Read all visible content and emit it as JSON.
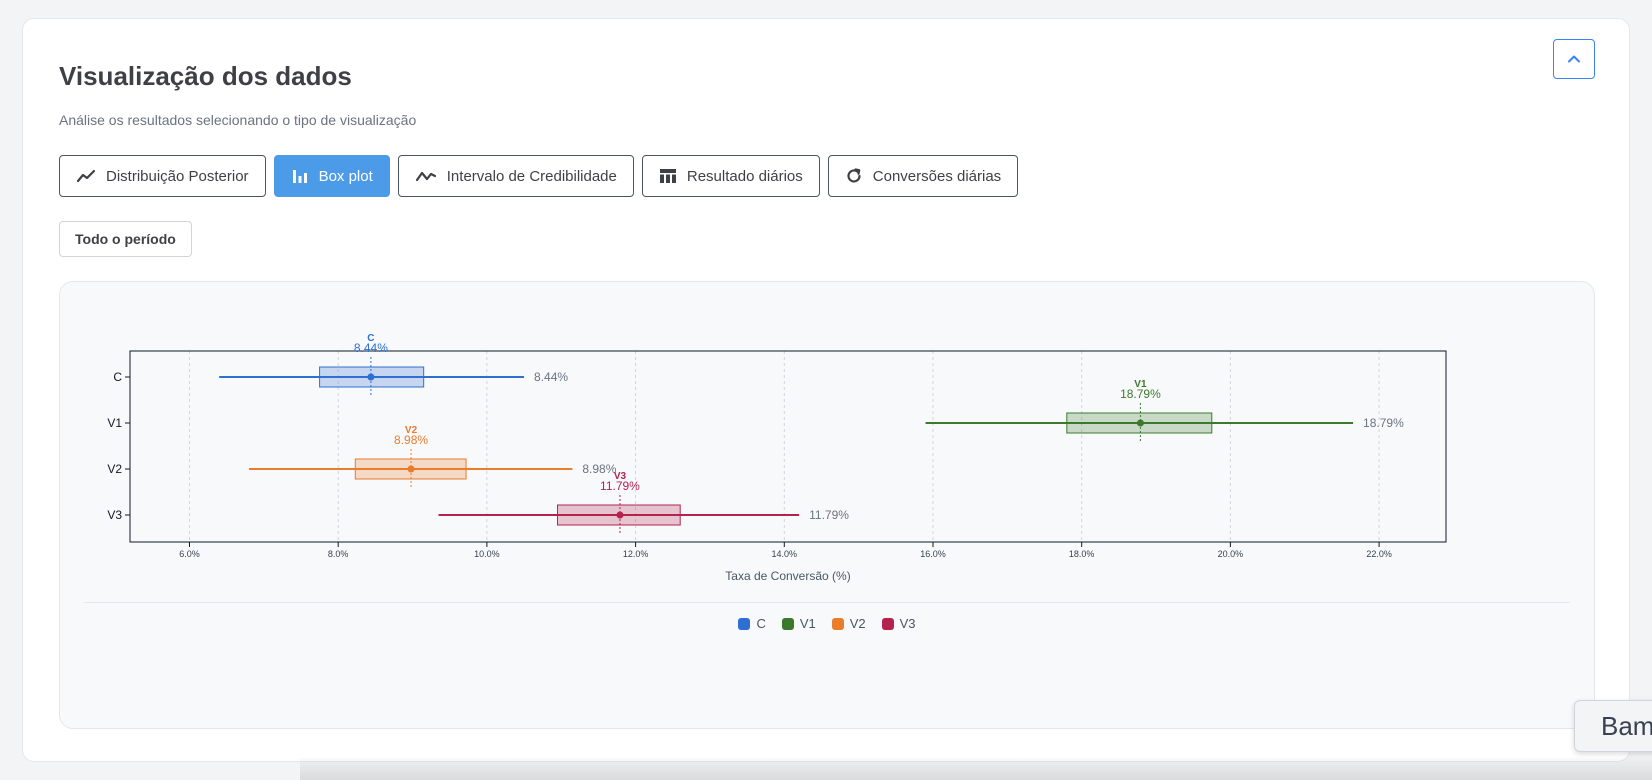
{
  "section": {
    "title": "Visualização dos dados",
    "subtitle": "Análise os resultados selecionando o tipo de visualização"
  },
  "tabs": [
    {
      "label": "Distribuição Posterior",
      "icon": "line-chart-icon",
      "active": false
    },
    {
      "label": "Box plot",
      "icon": "bar-chart-icon",
      "active": true
    },
    {
      "label": "Intervalo de Credibilidade",
      "icon": "line-chart-icon",
      "active": false
    },
    {
      "label": "Resultado diários",
      "icon": "table-icon",
      "active": false
    },
    {
      "label": "Conversões diárias",
      "icon": "refresh-icon",
      "active": false
    }
  ],
  "period_button": "Todo o período",
  "toast": "Bam",
  "colors": {
    "accent": "#4c9be8",
    "C": "#2e6fd1",
    "V1": "#3b7a2c",
    "V2": "#ea7c2c",
    "V3": "#b5224f"
  },
  "chart_data": {
    "type": "boxplot",
    "orientation": "horizontal",
    "xlabel": "Taxa de Conversão (%)",
    "xlim": [
      5.2,
      22.9
    ],
    "x_ticks": [
      "6.0%",
      "8.0%",
      "10.0%",
      "12.0%",
      "14.0%",
      "16.0%",
      "18.0%",
      "20.0%",
      "22.0%"
    ],
    "x_tick_values": [
      6,
      8,
      10,
      12,
      14,
      16,
      18,
      20,
      22
    ],
    "grid": "vertical dashed",
    "legend": "bottom-center",
    "categories": [
      "C",
      "V1",
      "V2",
      "V3"
    ],
    "series": [
      {
        "name": "C",
        "min": 6.4,
        "q1": 7.75,
        "median": 8.44,
        "q3": 9.15,
        "max": 10.5,
        "value_label": "8.44%",
        "color": "#2e6fd1"
      },
      {
        "name": "V1",
        "min": 15.9,
        "q1": 17.8,
        "median": 18.79,
        "q3": 19.75,
        "max": 21.65,
        "value_label": "18.79%",
        "color": "#3b7a2c"
      },
      {
        "name": "V2",
        "min": 6.8,
        "q1": 8.23,
        "median": 8.98,
        "q3": 9.72,
        "max": 11.15,
        "value_label": "8.98%",
        "color": "#ea7c2c"
      },
      {
        "name": "V3",
        "min": 9.35,
        "q1": 10.95,
        "median": 11.79,
        "q3": 12.6,
        "max": 14.2,
        "value_label": "11.79%",
        "color": "#b5224f"
      }
    ]
  }
}
